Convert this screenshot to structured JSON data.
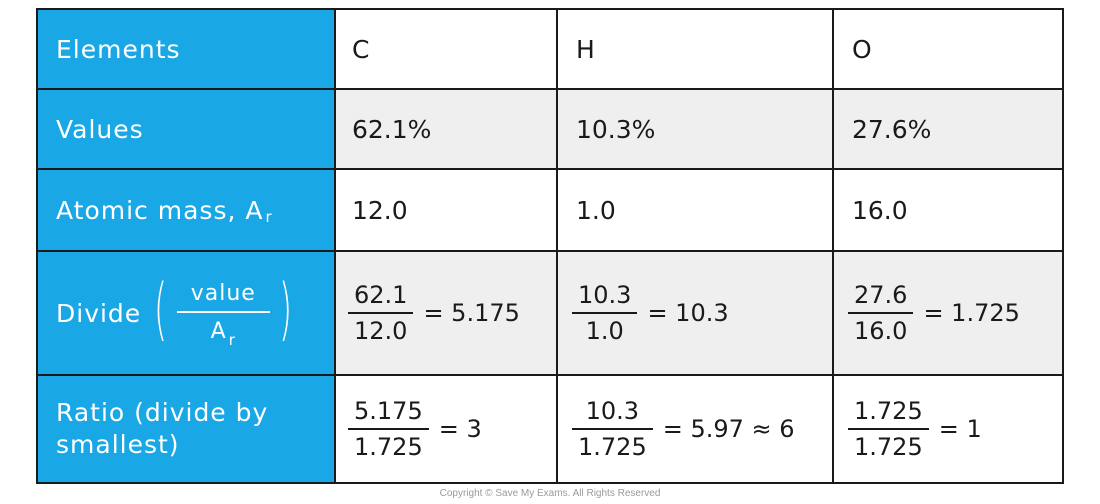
{
  "rows": [
    {
      "header": "Elements",
      "cells": [
        "C",
        "H",
        "O"
      ]
    },
    {
      "header": "Values",
      "cells": [
        "62.1%",
        "10.3%",
        "27.6%"
      ]
    },
    {
      "header": "Atomic mass, A",
      "header_sub": "r",
      "cells": [
        "12.0",
        "1.0",
        "16.0"
      ]
    },
    {
      "header": "Divide",
      "header_frac_num": "value",
      "header_frac_den": "A",
      "header_frac_den_sub": "r",
      "cells": [
        {
          "num": "62.1",
          "den": "12.0",
          "result": "= 5.175"
        },
        {
          "num": "10.3",
          "den": "1.0",
          "result": "= 10.3"
        },
        {
          "num": "27.6",
          "den": "16.0",
          "result": "= 1.725"
        }
      ]
    },
    {
      "header": "Ratio (divide by smallest)",
      "cells": [
        {
          "num": "5.175",
          "den": "1.725",
          "result": "= 3"
        },
        {
          "num": "10.3",
          "den": "1.725",
          "result": "= 5.97 ≈ 6"
        },
        {
          "num": "1.725",
          "den": "1.725",
          "result": "= 1"
        }
      ]
    }
  ],
  "copyright": "Copyright © Save My Exams. All Rights Reserved",
  "colors": {
    "header_bg": "#1aa7e6",
    "shade": "#efefef",
    "border": "#1a1a1a"
  }
}
